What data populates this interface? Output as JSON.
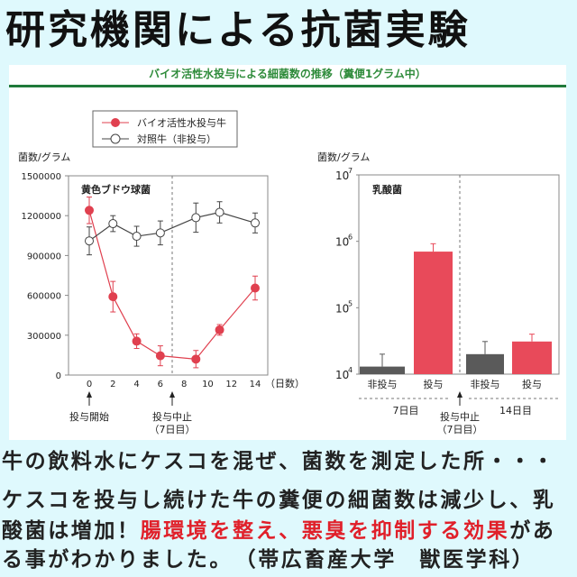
{
  "title": "研究機関による抗菌実験",
  "chart_subtitle": "バイオ活性水投与による細菌数の推移（糞便1グラム中）",
  "legend": {
    "treated": "バイオ活性水投与牛",
    "control": "対照牛（非投与）"
  },
  "chart_data": [
    {
      "type": "line",
      "title": "黄色ブドウ球菌",
      "ylabel": "菌数/グラム",
      "xlabel": "（日数）",
      "ylim": [
        0,
        1500000
      ],
      "yticks": [
        0,
        300000,
        600000,
        900000,
        1200000,
        1500000
      ],
      "ytick_labels": [
        "0",
        "300000",
        "600000",
        "900000",
        "1200000",
        "1500000"
      ],
      "xticks": [
        0,
        2,
        4,
        6,
        8,
        10,
        12,
        14
      ],
      "xtick_labels": [
        "0",
        "2",
        "4",
        "6",
        "8",
        "10",
        "12",
        "14"
      ],
      "x": [
        0,
        2,
        4,
        6,
        9,
        11,
        14
      ],
      "series": [
        {
          "name": "バイオ活性水投与牛",
          "color": "#e0404f",
          "marker": "filled",
          "values": [
            1240000,
            590000,
            255000,
            145000,
            120000,
            340000,
            655000
          ],
          "errors": [
            100000,
            115000,
            55000,
            75000,
            65000,
            40000,
            90000
          ]
        },
        {
          "name": "対照牛（非投与）",
          "color": "#444444",
          "marker": "open",
          "values": [
            1010000,
            1140000,
            1045000,
            1070000,
            1185000,
            1225000,
            1145000
          ],
          "errors": [
            105000,
            60000,
            75000,
            90000,
            110000,
            80000,
            75000
          ]
        }
      ],
      "vline_day": 7,
      "annotations": [
        {
          "day": 0,
          "label": "投与開始"
        },
        {
          "day": 7,
          "label": "投与中止",
          "sub": "（7日目）"
        }
      ]
    },
    {
      "type": "bar",
      "title": "乳酸菌",
      "ylabel": "菌数/グラム",
      "yscale": "log",
      "ylim": [
        10000,
        10000000
      ],
      "ytick_exponents": [
        "4",
        "5",
        "6",
        "7"
      ],
      "categories": [
        "非投与",
        "投与",
        "非投与",
        "投与"
      ],
      "groups": [
        "7日目",
        "14日目"
      ],
      "values": [
        13000,
        700000,
        20000,
        31000
      ],
      "error_tops": [
        20000,
        920000,
        31000,
        40000
      ],
      "colors": [
        "#5a5a5a",
        "#e84a5a",
        "#5a5a5a",
        "#e84a5a"
      ],
      "annotation": {
        "label": "投与中止",
        "sub": "（7日目）"
      }
    }
  ],
  "text": {
    "line1": "牛の飲料水にケスコを混ぜ、菌数を測定した所・・・",
    "line2": "ケスコを投与し続けた牛の糞便の細菌数は減少し、乳",
    "line3a": "酸菌は増加！",
    "line3_highlight": "腸環境を整え、悪臭を抑制する効果",
    "line3b": "があ",
    "line4": "る事がわかりました。　（帯広畜産大学　獣医学科）"
  }
}
